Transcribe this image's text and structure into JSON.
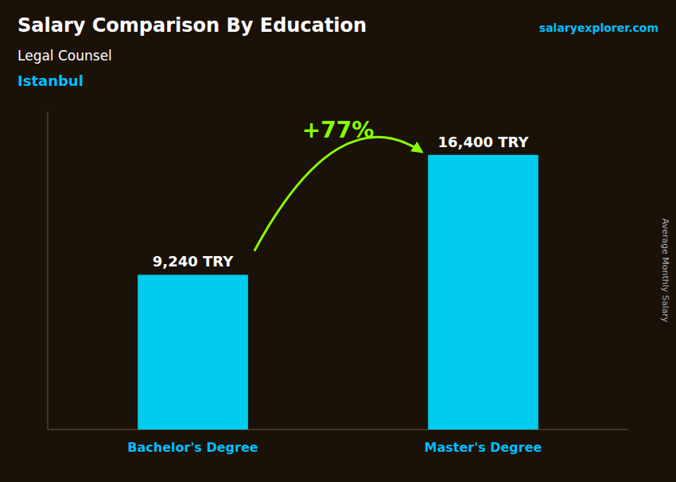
{
  "chart_data": {
    "type": "bar",
    "title": "Salary Comparison By Education",
    "subtitle": "Legal Counsel",
    "annotations": [
      "Istanbul",
      "+77%",
      "salaryexplorer.com"
    ],
    "ylabel": "Average Monthly Salary",
    "categories": [
      "Bachelor's Degree",
      "Master's Degree"
    ],
    "values": [
      9240,
      16400
    ],
    "value_labels": [
      "9,240 TRY",
      "16,400 TRY"
    ],
    "color": "#00CCEE",
    "ylim": [
      0,
      19000
    ],
    "data_labels": true,
    "tick_labels": false
  }
}
